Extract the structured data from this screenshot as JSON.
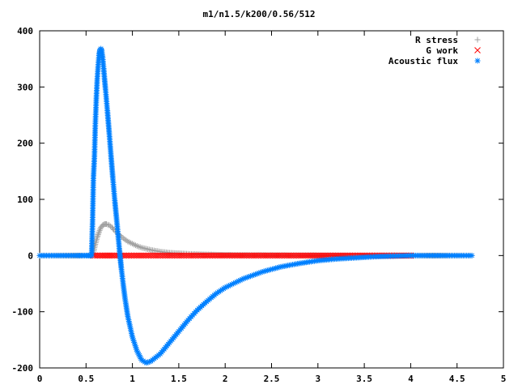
{
  "chart_data": {
    "type": "scatter",
    "title": "m1/n1.5/k200/0.56/512",
    "xlabel": "",
    "ylabel": "",
    "xlim": [
      0,
      5
    ],
    "ylim": [
      -200,
      400
    ],
    "x_ticks": [
      "0",
      "0.5",
      "1",
      "1.5",
      "2",
      "2.5",
      "3",
      "3.5",
      "4",
      "4.5",
      "5"
    ],
    "y_ticks": [
      "400",
      "300",
      "200",
      "100",
      "0",
      "-100",
      "-200"
    ],
    "grid": false,
    "legend_position": "top-right",
    "series": [
      {
        "name": "R stress",
        "marker": "plus",
        "color": "#a0a0a0",
        "points": [
          [
            0.0,
            0
          ],
          [
            0.5,
            0
          ],
          [
            0.55,
            0
          ],
          [
            0.58,
            5
          ],
          [
            0.6,
            20
          ],
          [
            0.62,
            32
          ],
          [
            0.64,
            42
          ],
          [
            0.66,
            50
          ],
          [
            0.68,
            54
          ],
          [
            0.7,
            56
          ],
          [
            0.72,
            56
          ],
          [
            0.75,
            54
          ],
          [
            0.78,
            50
          ],
          [
            0.8,
            46
          ],
          [
            0.85,
            38
          ],
          [
            0.9,
            31
          ],
          [
            0.95,
            25
          ],
          [
            1.0,
            21
          ],
          [
            1.05,
            17
          ],
          [
            1.1,
            14
          ],
          [
            1.15,
            12
          ],
          [
            1.2,
            10
          ],
          [
            1.3,
            7
          ],
          [
            1.4,
            5
          ],
          [
            1.5,
            4
          ],
          [
            1.6,
            3
          ],
          [
            1.8,
            2
          ],
          [
            2.0,
            1
          ],
          [
            2.5,
            0.5
          ],
          [
            3.0,
            0.2
          ],
          [
            3.5,
            0.1
          ],
          [
            4.0,
            0
          ],
          [
            4.66,
            0
          ]
        ]
      },
      {
        "name": "G work",
        "marker": "cross",
        "color": "#ff0000",
        "points": [
          [
            0.58,
            0
          ],
          [
            0.7,
            0
          ],
          [
            0.8,
            0
          ],
          [
            1.0,
            0
          ],
          [
            1.2,
            0
          ],
          [
            1.5,
            0
          ],
          [
            1.8,
            0
          ],
          [
            2.0,
            0
          ],
          [
            2.2,
            0
          ],
          [
            2.5,
            0
          ],
          [
            2.8,
            0
          ],
          [
            3.0,
            0
          ],
          [
            3.2,
            0
          ],
          [
            3.4,
            0
          ],
          [
            3.6,
            0
          ],
          [
            3.8,
            0
          ],
          [
            4.0,
            0
          ]
        ]
      },
      {
        "name": "Acoustic flux",
        "marker": "star",
        "color": "#0080ff",
        "points": [
          [
            0.0,
            0
          ],
          [
            0.2,
            0
          ],
          [
            0.4,
            0
          ],
          [
            0.5,
            0
          ],
          [
            0.56,
            0
          ],
          [
            0.57,
            58
          ],
          [
            0.58,
            140
          ],
          [
            0.59,
            173
          ],
          [
            0.6,
            232
          ],
          [
            0.61,
            276
          ],
          [
            0.62,
            312
          ],
          [
            0.63,
            337
          ],
          [
            0.64,
            356
          ],
          [
            0.65,
            366
          ],
          [
            0.66,
            368
          ],
          [
            0.67,
            364
          ],
          [
            0.68,
            352
          ],
          [
            0.69,
            333
          ],
          [
            0.7,
            313
          ],
          [
            0.71,
            296
          ],
          [
            0.72,
            277
          ],
          [
            0.73,
            258
          ],
          [
            0.74,
            238
          ],
          [
            0.75,
            218
          ],
          [
            0.76,
            197
          ],
          [
            0.77,
            176
          ],
          [
            0.78,
            156
          ],
          [
            0.79,
            136
          ],
          [
            0.8,
            117
          ],
          [
            0.81,
            98
          ],
          [
            0.82,
            81
          ],
          [
            0.83,
            64
          ],
          [
            0.84,
            46
          ],
          [
            0.85,
            28
          ],
          [
            0.86,
            10
          ],
          [
            0.87,
            -6
          ],
          [
            0.88,
            -22
          ],
          [
            0.9,
            -50
          ],
          [
            0.92,
            -76
          ],
          [
            0.95,
            -108
          ],
          [
            1.0,
            -145
          ],
          [
            1.05,
            -170
          ],
          [
            1.1,
            -186
          ],
          [
            1.15,
            -191
          ],
          [
            1.2,
            -188
          ],
          [
            1.3,
            -175
          ],
          [
            1.4,
            -155
          ],
          [
            1.5,
            -135
          ],
          [
            1.6,
            -115
          ],
          [
            1.7,
            -97
          ],
          [
            1.8,
            -82
          ],
          [
            1.9,
            -68
          ],
          [
            2.0,
            -57
          ],
          [
            2.2,
            -41
          ],
          [
            2.4,
            -29
          ],
          [
            2.6,
            -20
          ],
          [
            2.8,
            -14
          ],
          [
            3.0,
            -9
          ],
          [
            3.2,
            -6
          ],
          [
            3.4,
            -4
          ],
          [
            3.6,
            -2
          ],
          [
            3.8,
            -1
          ],
          [
            4.0,
            0
          ],
          [
            4.2,
            0
          ],
          [
            4.4,
            0
          ],
          [
            4.66,
            0
          ]
        ]
      }
    ]
  }
}
